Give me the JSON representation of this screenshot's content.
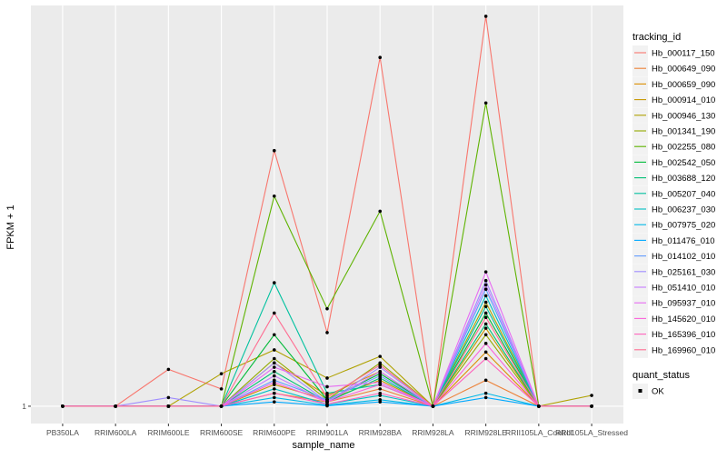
{
  "chart_data": {
    "type": "line",
    "title": "",
    "xlabel": "sample_name",
    "ylabel": "FPKM + 1",
    "y_tick_labels": [
      "1"
    ],
    "y_tick_values": [
      1
    ],
    "ylim": [
      0.2,
      19.5
    ],
    "grid": true,
    "legend_placement": "right",
    "categories": [
      "PB350LA",
      "RRIM600LA",
      "RRIM600LE",
      "RRIM600SE",
      "RRIM600PE",
      "RRIM901LA",
      "RRIM928BA",
      "RRIM928LA",
      "RRIM928LE",
      "RRII105LA_Control",
      "RRII105LA_Stressed"
    ],
    "legend_title": "tracking_id",
    "series": [
      {
        "name": "Hb_000117_150",
        "color": "#F8766D",
        "values": [
          1,
          1,
          2.7,
          1.8,
          12.8,
          4.4,
          17.1,
          1,
          19.0,
          1,
          1
        ]
      },
      {
        "name": "Hb_000649_090",
        "color": "#EC8239",
        "values": [
          1,
          1,
          1,
          1,
          1.6,
          1.2,
          1.8,
          1,
          2.2,
          1,
          1
        ]
      },
      {
        "name": "Hb_000659_090",
        "color": "#DB8E00",
        "values": [
          1,
          1,
          1,
          1,
          3.0,
          1.5,
          2.6,
          1,
          3.5,
          1,
          1
        ]
      },
      {
        "name": "Hb_000914_010",
        "color": "#C79800",
        "values": [
          1,
          1,
          1,
          1,
          2.0,
          1.3,
          2.2,
          1,
          4.6,
          1,
          1
        ]
      },
      {
        "name": "Hb_000946_130",
        "color": "#AFA100",
        "values": [
          1,
          1,
          1,
          2.5,
          3.6,
          2.3,
          3.3,
          1,
          5.8,
          1,
          1.5
        ]
      },
      {
        "name": "Hb_001341_190",
        "color": "#93AA00",
        "values": [
          1,
          1,
          1,
          1,
          3.2,
          1.3,
          3.0,
          1,
          4.3,
          1,
          1
        ]
      },
      {
        "name": "Hb_002255_080",
        "color": "#5EB300",
        "values": [
          1,
          1,
          1,
          1,
          10.7,
          5.5,
          10.0,
          1,
          15.0,
          1,
          1
        ]
      },
      {
        "name": "Hb_002542_050",
        "color": "#00BA38",
        "values": [
          1,
          1,
          1,
          1,
          4.3,
          1.3,
          2.5,
          1,
          5.3,
          1,
          1
        ]
      },
      {
        "name": "Hb_003688_120",
        "color": "#00BF74",
        "values": [
          1,
          1,
          1,
          1,
          2.6,
          1.2,
          2.3,
          1,
          4.8,
          1,
          1
        ]
      },
      {
        "name": "Hb_005207_040",
        "color": "#00C19F",
        "values": [
          1,
          1,
          1,
          1,
          6.7,
          1.6,
          2.0,
          1,
          5.6,
          1,
          1
        ]
      },
      {
        "name": "Hb_006237_030",
        "color": "#00BFC4",
        "values": [
          1,
          1,
          1,
          1,
          1.8,
          1.1,
          1.5,
          1,
          6.1,
          1,
          1
        ]
      },
      {
        "name": "Hb_007975_020",
        "color": "#00B8E7",
        "values": [
          1,
          1,
          1,
          1,
          1.4,
          1.05,
          1.3,
          1,
          1.6,
          1,
          1
        ]
      },
      {
        "name": "Hb_011476_010",
        "color": "#00A9FF",
        "values": [
          1,
          1,
          1,
          1,
          1.2,
          1.02,
          1.2,
          1,
          1.4,
          1,
          1
        ]
      },
      {
        "name": "Hb_014102_010",
        "color": "#619CFF",
        "values": [
          1,
          1,
          1,
          1,
          2.2,
          1.3,
          2.4,
          1,
          6.4,
          1,
          1
        ]
      },
      {
        "name": "Hb_025161_030",
        "color": "#9F8CFF",
        "values": [
          1,
          1,
          1.4,
          1,
          3.0,
          1.2,
          2.8,
          1,
          6.8,
          1,
          1
        ]
      },
      {
        "name": "Hb_051410_010",
        "color": "#C77CFF",
        "values": [
          1,
          1,
          1,
          1,
          2.4,
          1.2,
          2.6,
          1,
          6.6,
          1,
          1
        ]
      },
      {
        "name": "Hb_095937_010",
        "color": "#E76BF3",
        "values": [
          1,
          1,
          1,
          1,
          2.8,
          1.9,
          2.1,
          1,
          7.2,
          1,
          1
        ]
      },
      {
        "name": "Hb_145620_010",
        "color": "#FA62DB",
        "values": [
          1,
          1,
          1,
          1,
          2.1,
          1.2,
          2.0,
          1,
          3.9,
          1,
          1
        ]
      },
      {
        "name": "Hb_165396_010",
        "color": "#FF62BC",
        "values": [
          1,
          1,
          1,
          1,
          1.6,
          1.1,
          1.6,
          1,
          3.2,
          1,
          1
        ]
      },
      {
        "name": "Hb_169960_010",
        "color": "#FF6C91",
        "values": [
          1,
          1,
          1,
          1,
          5.3,
          1.4,
          2.9,
          1,
          5.1,
          1,
          1
        ]
      }
    ],
    "legend2_title": "quant_status",
    "legend2_items": [
      "OK"
    ]
  }
}
